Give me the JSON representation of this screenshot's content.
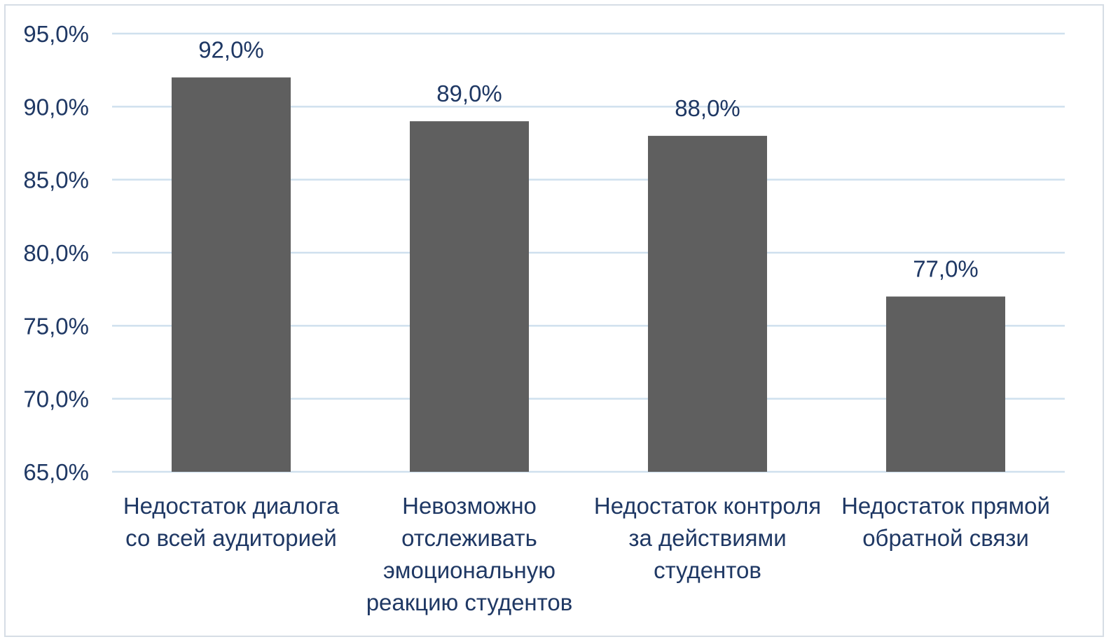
{
  "chart_data": {
    "type": "bar",
    "categories": [
      [
        "Недостаток диалога",
        "со всей аудиторией"
      ],
      [
        "Невозможно",
        "отслеживать",
        "эмоциональную",
        "реакцию студентов"
      ],
      [
        "Недостаток контроля",
        "за действиями",
        "студентов"
      ],
      [
        "Недостаток прямой",
        "обратной связи"
      ]
    ],
    "values": [
      92.0,
      89.0,
      88.0,
      77.0
    ],
    "data_labels": [
      "92,0%",
      "89,0%",
      "88,0%",
      "77,0%"
    ],
    "ylim": [
      65,
      95
    ],
    "yticks": [
      95,
      90,
      85,
      80,
      75,
      70,
      65
    ],
    "ytick_labels": [
      "95,0%",
      "90,0%",
      "85,0%",
      "80,0%",
      "75,0%",
      "70,0%",
      "65,0%"
    ],
    "grid": true,
    "legend": "none",
    "title": "",
    "xlabel": "",
    "ylabel": "",
    "colors": {
      "bar": "#5f5f5f",
      "grid": "#cfe0ee",
      "text": "#1f3864",
      "border": "#d6dde5"
    }
  }
}
